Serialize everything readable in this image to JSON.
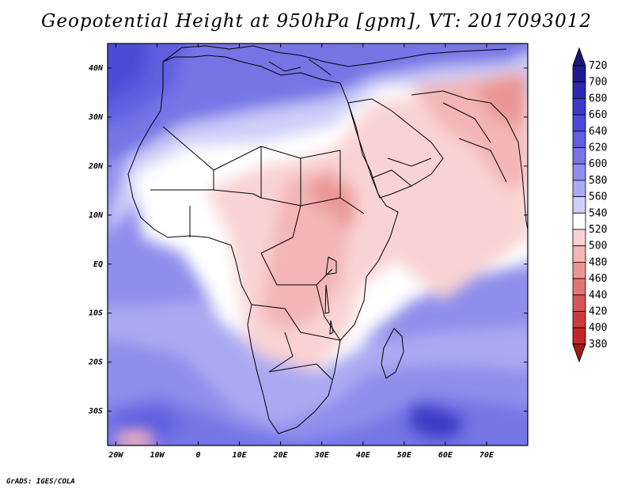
{
  "title": "Geopotential Height at 950hPa [gpm], VT: 2017093012",
  "footer": "GrADS: IGES/COLA",
  "map": {
    "lon_range": [
      -22,
      80
    ],
    "lat_range": [
      -37,
      45
    ],
    "x_ticks": [
      "20W",
      "10W",
      "0",
      "10E",
      "20E",
      "30E",
      "40E",
      "50E",
      "60E",
      "70E"
    ],
    "y_ticks": [
      "40N",
      "30N",
      "20N",
      "10N",
      "EQ",
      "10S",
      "20S",
      "30S"
    ]
  },
  "colorbar": {
    "levels": [
      720,
      700,
      680,
      660,
      640,
      620,
      600,
      580,
      560,
      540,
      520,
      500,
      480,
      460,
      440,
      420,
      400,
      380
    ],
    "colors": [
      "#1f1a8f",
      "#2b29b0",
      "#3a3ac8",
      "#4b4bd8",
      "#5f5fe0",
      "#7575e6",
      "#8e8eec",
      "#aaaaf2",
      "#cfcff8",
      "#ffffff",
      "#f9d3d3",
      "#f3b5b5",
      "#ea9595",
      "#e07575",
      "#d65555",
      "#cc3b3b",
      "#c02727",
      "#a81818"
    ],
    "top_arrow_color": "#1a1878",
    "bottom_arrow_color": "#a81818"
  }
}
